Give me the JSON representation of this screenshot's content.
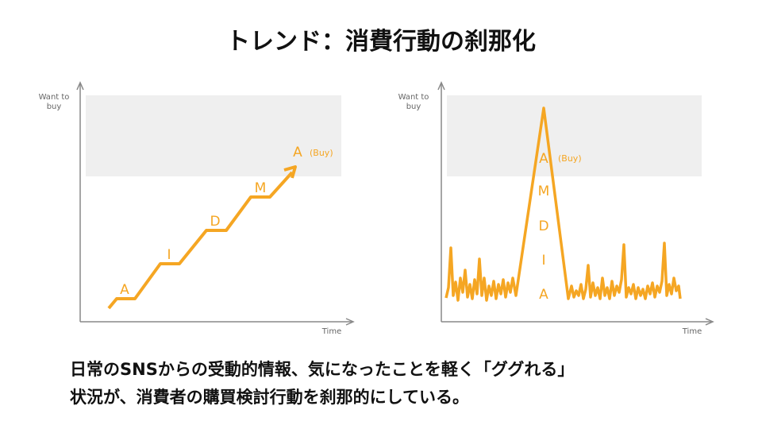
{
  "title": "トレンド：消費行動の刹那化",
  "diagrams": [
    {
      "y_label": [
        "Want to",
        "buy"
      ],
      "x_label": "Time",
      "stages": [
        "A",
        "I",
        "D",
        "M",
        "A"
      ],
      "buy_label": "(Buy)"
    },
    {
      "y_label": [
        "Want to",
        "buy"
      ],
      "x_label": "Time",
      "stages": [
        "A",
        "I",
        "D",
        "M",
        "A"
      ],
      "buy_label": "(Buy)"
    }
  ],
  "caption": [
    "日常のSNSからの受動的情報、気になったことを軽く「ググれる」",
    "状況が、消費者の購買検討行動を刹那的にしている。"
  ]
}
